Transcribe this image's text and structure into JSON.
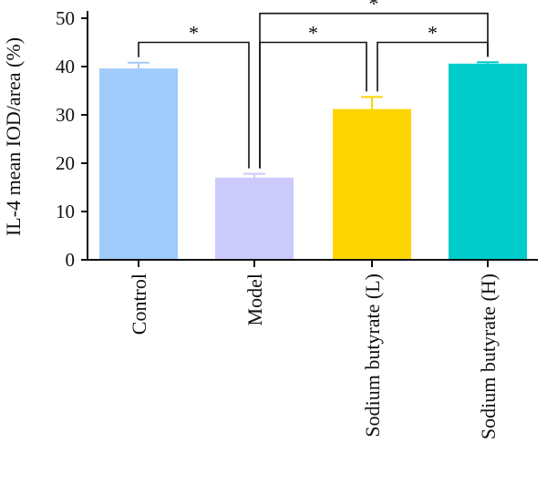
{
  "chart_data": {
    "type": "bar",
    "title": "",
    "xlabel": "",
    "ylabel": "IL-4 mean IOD/area (%)",
    "ylim": [
      0,
      50
    ],
    "yticks": [
      0,
      10,
      20,
      30,
      40,
      50
    ],
    "categories": [
      "Control",
      "Model",
      "Sodium butyrate (L)",
      "Sodium butyrate (H)"
    ],
    "values": [
      39.6,
      17.0,
      31.2,
      40.6
    ],
    "errors": [
      1.2,
      0.8,
      2.5,
      0.3
    ],
    "colors": [
      "#a0cbfa",
      "#cccafb",
      "#fdd500",
      "#00cccc"
    ],
    "significance": [
      {
        "from": 0,
        "to": 1,
        "label": "*",
        "y": 45.0
      },
      {
        "from": 1,
        "to": 2,
        "label": "*",
        "y": 45.0
      },
      {
        "from": 2,
        "to": 3,
        "label": "*",
        "y": 45.0
      },
      {
        "from": 1,
        "to": 3,
        "label": "*",
        "y": 51.0
      }
    ]
  }
}
